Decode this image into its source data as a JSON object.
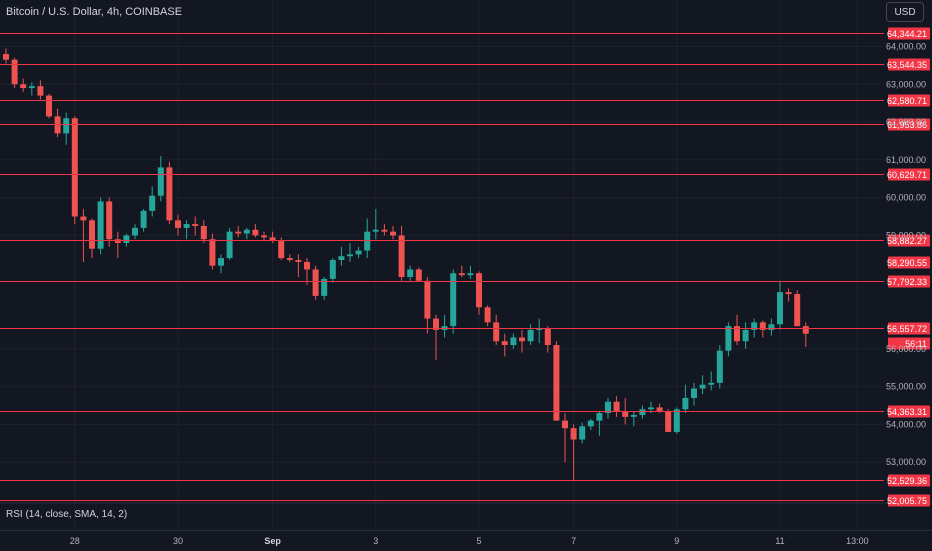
{
  "header": {
    "title": "Bitcoin / U.S. Dollar, 4h, COINBASE",
    "currency_button": "USD"
  },
  "indicator": {
    "label": "RSI (14, close, SMA, 14, 2)"
  },
  "colors": {
    "background": "#131722",
    "up": "#26a69a",
    "down": "#ef5350",
    "level_line": "#f23645",
    "grid": "#1e222d"
  },
  "chart_data": {
    "type": "candlestick",
    "title": "Bitcoin / U.S. Dollar, 4h, COINBASE",
    "ylim": [
      52000,
      64700
    ],
    "y_ticks": [
      {
        "value": 64000,
        "label": "64,000.00"
      },
      {
        "value": 63000,
        "label": "63,000.00"
      },
      {
        "value": 62000,
        "label": "62,000.00"
      },
      {
        "value": 61000,
        "label": "61,000.00"
      },
      {
        "value": 60000,
        "label": "60,000.00"
      },
      {
        "value": 59000,
        "label": "59,000.00"
      },
      {
        "value": 56000,
        "label": "56,000.00"
      },
      {
        "value": 55000,
        "label": "55,000.00"
      },
      {
        "value": 54000,
        "label": "54,000.00"
      },
      {
        "value": 53000,
        "label": "53,000.00"
      }
    ],
    "levels": [
      {
        "value": 64344.21,
        "label": "64,344.21"
      },
      {
        "value": 63544.35,
        "label": "63,544.35"
      },
      {
        "value": 62580.71,
        "label": "62,580.71"
      },
      {
        "value": 61953.86,
        "label": "61,953.86"
      },
      {
        "value": 60629.71,
        "label": "60,629.71"
      },
      {
        "value": 58882.27,
        "label": "58,882.27"
      },
      {
        "value": 57792.33,
        "label": "57,792.33"
      },
      {
        "value": 56556.87,
        "label": "56,556.87"
      },
      {
        "value": 54363.31,
        "label": "54,363.31"
      },
      {
        "value": 52529.36,
        "label": "52,529.36"
      },
      {
        "value": 52005.75,
        "label": "52,005.75"
      }
    ],
    "price_tags": [
      {
        "value": 58290.55,
        "label": "58,290.55"
      },
      {
        "value": 56557.72,
        "label": "56,557.72"
      },
      {
        "value": 56150,
        "label": "56:11"
      }
    ],
    "x_labels": [
      {
        "label": "28",
        "x_index": 8
      },
      {
        "label": "30",
        "x_index": 20
      },
      {
        "label": "Sep",
        "x_index": 31,
        "bold": true
      },
      {
        "label": "3",
        "x_index": 43
      },
      {
        "label": "5",
        "x_index": 55
      },
      {
        "label": "7",
        "x_index": 66
      },
      {
        "label": "9",
        "x_index": 78
      },
      {
        "label": "11",
        "x_index": 90
      },
      {
        "label": "13:00",
        "x_index": 99
      }
    ],
    "candles": [
      [
        63800,
        63950,
        63550,
        63650
      ],
      [
        63650,
        63700,
        62900,
        63000
      ],
      [
        63000,
        63150,
        62800,
        62900
      ],
      [
        62900,
        63050,
        62700,
        62950
      ],
      [
        62950,
        63100,
        62600,
        62700
      ],
      [
        62700,
        62750,
        62100,
        62150
      ],
      [
        62150,
        62350,
        61600,
        61700
      ],
      [
        61700,
        62250,
        61400,
        62100
      ],
      [
        62100,
        62150,
        59300,
        59500
      ],
      [
        59500,
        59700,
        58300,
        59400
      ],
      [
        59400,
        59450,
        58400,
        58650
      ],
      [
        58650,
        60000,
        58500,
        59900
      ],
      [
        59900,
        60000,
        58700,
        58900
      ],
      [
        58900,
        59100,
        58400,
        58800
      ],
      [
        58800,
        59050,
        58700,
        59000
      ],
      [
        59000,
        59300,
        58900,
        59200
      ],
      [
        59200,
        59700,
        59100,
        59650
      ],
      [
        59650,
        60300,
        59500,
        60050
      ],
      [
        60050,
        61100,
        59900,
        60800
      ],
      [
        60800,
        60950,
        59300,
        59400
      ],
      [
        59400,
        59550,
        59000,
        59200
      ],
      [
        59200,
        59400,
        58900,
        59300
      ],
      [
        59300,
        59500,
        59000,
        59250
      ],
      [
        59250,
        59400,
        58800,
        58900
      ],
      [
        58900,
        59050,
        58100,
        58200
      ],
      [
        58200,
        58500,
        58000,
        58400
      ],
      [
        58400,
        59200,
        58350,
        59100
      ],
      [
        59100,
        59250,
        58950,
        59050
      ],
      [
        59050,
        59200,
        58900,
        59150
      ],
      [
        59150,
        59300,
        58950,
        59000
      ],
      [
        59000,
        59100,
        58850,
        58950
      ],
      [
        58950,
        59100,
        58800,
        58850
      ],
      [
        58850,
        58950,
        58350,
        58400
      ],
      [
        58400,
        58500,
        58300,
        58350
      ],
      [
        58350,
        58500,
        57900,
        58300
      ],
      [
        58300,
        58400,
        57700,
        58100
      ],
      [
        58100,
        58200,
        57300,
        57400
      ],
      [
        57400,
        57900,
        57300,
        57850
      ],
      [
        57850,
        58400,
        57750,
        58350
      ],
      [
        58350,
        58700,
        58200,
        58450
      ],
      [
        58450,
        58800,
        58300,
        58500
      ],
      [
        58500,
        58700,
        58400,
        58600
      ],
      [
        58600,
        59450,
        58400,
        59100
      ],
      [
        59100,
        59700,
        58900,
        59150
      ],
      [
        59150,
        59300,
        59000,
        59100
      ],
      [
        59100,
        59250,
        58900,
        59000
      ],
      [
        59000,
        59250,
        57800,
        57900
      ],
      [
        57900,
        58200,
        57800,
        58100
      ],
      [
        58100,
        58150,
        57800,
        57800
      ],
      [
        57800,
        57900,
        56400,
        56800
      ],
      [
        56800,
        56900,
        55700,
        56500
      ],
      [
        56500,
        56900,
        56300,
        56600
      ],
      [
        56600,
        58100,
        56400,
        58000
      ],
      [
        58000,
        58200,
        57900,
        57950
      ],
      [
        57950,
        58200,
        57850,
        58000
      ],
      [
        58000,
        58050,
        56900,
        57100
      ],
      [
        57100,
        57150,
        56600,
        56700
      ],
      [
        56700,
        56900,
        56100,
        56200
      ],
      [
        56200,
        56400,
        55800,
        56100
      ],
      [
        56100,
        56400,
        56000,
        56300
      ],
      [
        56300,
        56500,
        55900,
        56200
      ],
      [
        56200,
        56650,
        56100,
        56500
      ],
      [
        56500,
        56800,
        56150,
        56550
      ],
      [
        56550,
        56600,
        55900,
        56100
      ],
      [
        56100,
        56200,
        54100,
        54100
      ],
      [
        54100,
        54300,
        53000,
        53900
      ],
      [
        53900,
        54000,
        52500,
        53600
      ],
      [
        53600,
        54050,
        53500,
        53950
      ],
      [
        53950,
        54150,
        53850,
        54100
      ],
      [
        54100,
        54350,
        53700,
        54300
      ],
      [
        54300,
        54700,
        54150,
        54600
      ],
      [
        54600,
        54750,
        54200,
        54350
      ],
      [
        54350,
        54700,
        54000,
        54200
      ],
      [
        54200,
        54350,
        53950,
        54250
      ],
      [
        54250,
        54500,
        54150,
        54400
      ],
      [
        54400,
        54600,
        54300,
        54450
      ],
      [
        54450,
        54550,
        54300,
        54350
      ],
      [
        54350,
        54400,
        53800,
        53800
      ],
      [
        53800,
        54450,
        53750,
        54400
      ],
      [
        54400,
        55050,
        54300,
        54700
      ],
      [
        54700,
        55100,
        54500,
        54950
      ],
      [
        54950,
        55300,
        54800,
        55050
      ],
      [
        55050,
        55400,
        54900,
        55100
      ],
      [
        55100,
        56100,
        54950,
        55950
      ],
      [
        55950,
        56700,
        55800,
        56600
      ],
      [
        56600,
        56900,
        56100,
        56200
      ],
      [
        56200,
        56700,
        56000,
        56500
      ],
      [
        56500,
        56800,
        56300,
        56700
      ],
      [
        56700,
        56750,
        56300,
        56500
      ],
      [
        56500,
        56800,
        56350,
        56650
      ],
      [
        56650,
        57800,
        56500,
        57500
      ],
      [
        57500,
        57600,
        57250,
        57450
      ],
      [
        57450,
        57550,
        56600,
        56600
      ],
      [
        56600,
        56700,
        56050,
        56400
      ]
    ]
  }
}
